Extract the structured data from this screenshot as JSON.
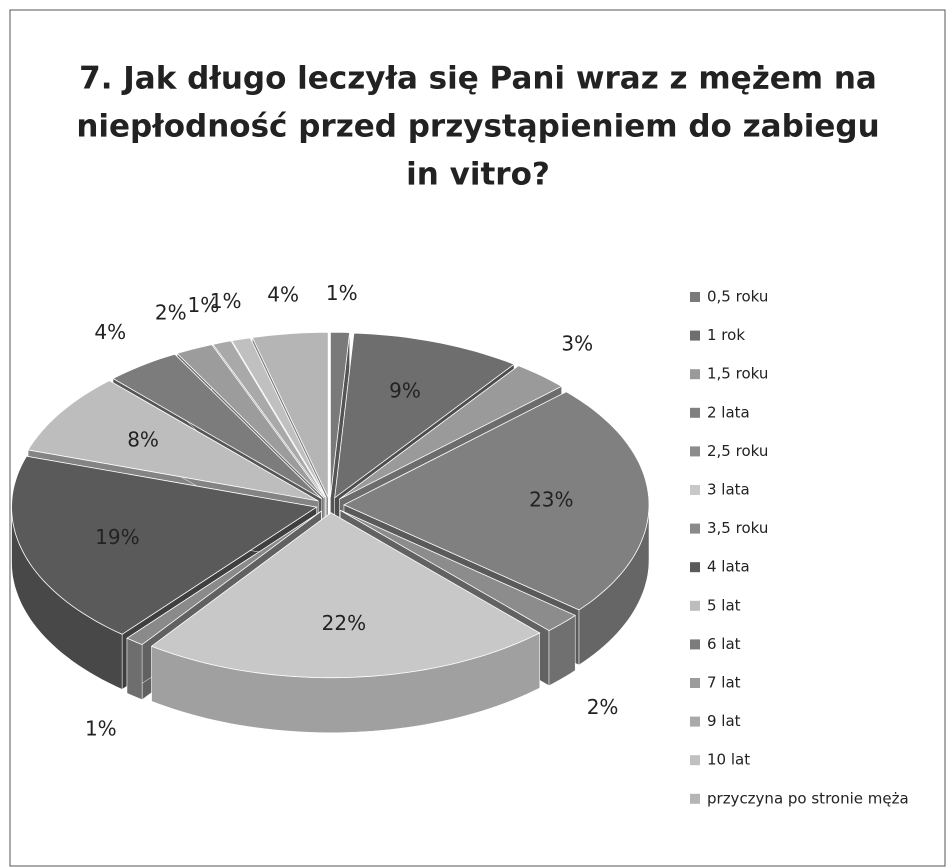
{
  "chart_data": {
    "type": "pie3d",
    "title": [
      "7. Jak długo leczyła się Pani wraz z mężem na",
      "niepłodność przed przystąpieniem do zabiegu",
      "in vitro?"
    ],
    "categories": [
      "0,5 roku",
      "1 rok",
      "1,5 roku",
      "2 lata",
      "2,5 roku",
      "3 lata",
      "3,5 roku",
      "4 lata",
      "5 lat",
      "6 lat",
      "7 lat",
      "9 lat",
      "10 lat",
      "przyczyna po stronie męża"
    ],
    "values": [
      1,
      9,
      3,
      23,
      2,
      22,
      1,
      19,
      8,
      4,
      2,
      1,
      1,
      4
    ],
    "value_labels": [
      "1%",
      "9%",
      "3%",
      "23%",
      "2%",
      "22%",
      "1%",
      "19%",
      "8%",
      "4%",
      "2%",
      "1%",
      "1%",
      "4%"
    ],
    "colors": [
      "#7a7a7a",
      "#6e6e6e",
      "#9a9a9a",
      "#808080",
      "#8c8c8c",
      "#c8c8c8",
      "#8a8a8a",
      "#5a5a5a",
      "#bdbdbd",
      "#7c7c7c",
      "#9c9c9c",
      "#a9a9a9",
      "#c0c0c0",
      "#b5b5b5"
    ],
    "legend": "right"
  }
}
